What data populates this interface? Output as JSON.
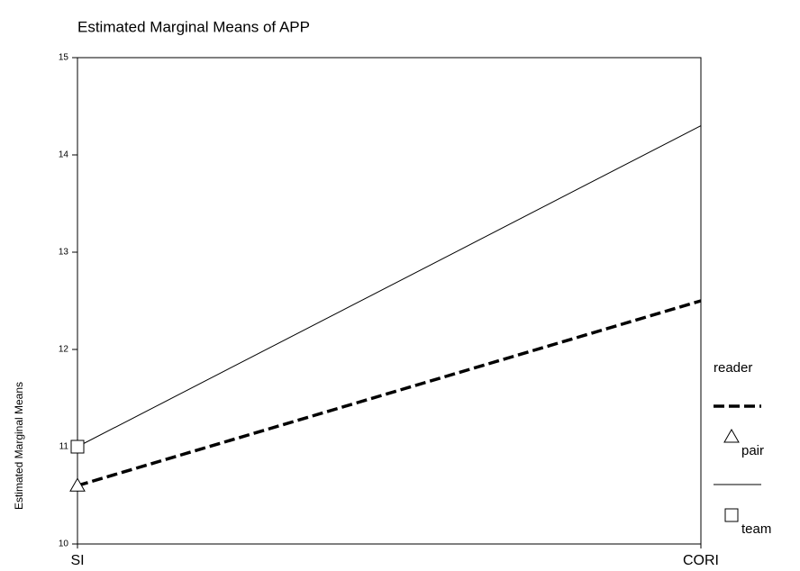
{
  "chart_data": {
    "type": "line",
    "title": "Estimated Marginal Means of APP",
    "y_label": "Estimated Marginal Means",
    "legend_title": "reader",
    "categories": [
      "SI",
      "CORI"
    ],
    "series": [
      {
        "name": "pair",
        "color": "#000000",
        "line_style": "dashed",
        "marker": "triangle",
        "values": [
          10.6,
          12.5
        ]
      },
      {
        "name": "team",
        "color": "#000000",
        "line_style": "solid",
        "marker": "square",
        "values": [
          11.0,
          14.3
        ]
      }
    ],
    "ylim": [
      10,
      15
    ],
    "yticks": [
      10,
      11,
      12,
      13,
      14,
      15
    ],
    "grid": false,
    "legend": "right"
  }
}
